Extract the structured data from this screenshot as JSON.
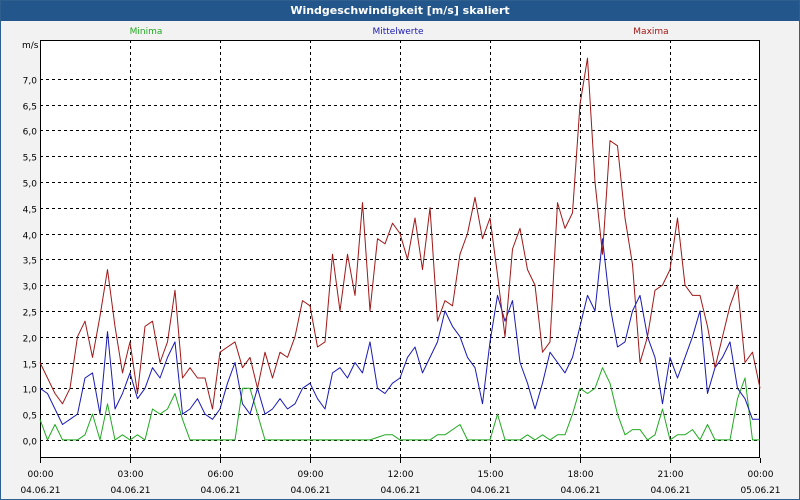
{
  "title": "Windgeschwindigkeit [m/s] skaliert",
  "colors": {
    "minima": "#22aa22",
    "mittelwerte": "#1a1ab5",
    "maxima": "#a01818",
    "grid": "#000000",
    "titlebar": "#23578c"
  },
  "chart_data": {
    "type": "line",
    "title": "Windgeschwindigkeit [m/s] skaliert",
    "ylabel": "m/s",
    "xlabel": "",
    "ylim": [
      -0.35,
      7.75
    ],
    "xlim": [
      0,
      24
    ],
    "yticks": [
      "0,0",
      "0,5",
      "1,0",
      "1,5",
      "2,0",
      "2,5",
      "3,0",
      "3,5",
      "4,0",
      "4,5",
      "5,0",
      "5,5",
      "6,0",
      "6,5",
      "7,0"
    ],
    "ytick_values": [
      0,
      0.5,
      1,
      1.5,
      2,
      2.5,
      3,
      3.5,
      4,
      4.5,
      5,
      5.5,
      6,
      6.5,
      7
    ],
    "xticks": [
      {
        "time": "00:00",
        "date": "04.06.21",
        "hour": 0
      },
      {
        "time": "03:00",
        "date": "04.06.21",
        "hour": 3
      },
      {
        "time": "06:00",
        "date": "04.06.21",
        "hour": 6
      },
      {
        "time": "09:00",
        "date": "04.06.21",
        "hour": 9
      },
      {
        "time": "12:00",
        "date": "04.06.21",
        "hour": 12
      },
      {
        "time": "15:00",
        "date": "04.06.21",
        "hour": 15
      },
      {
        "time": "18:00",
        "date": "04.06.21",
        "hour": 18
      },
      {
        "time": "21:00",
        "date": "04.06.21",
        "hour": 21
      },
      {
        "time": "00:00",
        "date": "05.06.21",
        "hour": 24
      }
    ],
    "grid": true,
    "legend_position": "top",
    "series": [
      {
        "name": "Minima",
        "x": [
          0,
          0.25,
          0.5,
          0.75,
          1,
          1.25,
          1.5,
          1.75,
          2,
          2.25,
          2.5,
          2.75,
          3,
          3.25,
          3.5,
          3.75,
          4,
          4.25,
          4.5,
          4.75,
          5,
          5.25,
          5.5,
          5.75,
          6,
          6.25,
          6.5,
          6.75,
          7,
          7.5,
          8,
          9,
          10,
          11,
          11.5,
          11.75,
          12,
          12.5,
          13,
          13.25,
          13.5,
          14,
          14.25,
          14.5,
          15,
          15.25,
          15.5,
          16,
          16.25,
          16.5,
          16.75,
          17,
          17.25,
          17.5,
          17.75,
          18,
          18.25,
          18.5,
          18.75,
          19,
          19.25,
          19.5,
          19.75,
          20,
          20.25,
          20.5,
          20.75,
          21,
          21.25,
          21.5,
          21.75,
          22,
          22.25,
          22.5,
          22.75,
          23,
          23.25,
          23.5,
          23.75,
          24
        ],
        "values": [
          0.4,
          0,
          0.3,
          0,
          0,
          0,
          0.1,
          0.5,
          0,
          0.7,
          0,
          0.1,
          0,
          0.1,
          0,
          0.6,
          0.5,
          0.6,
          0.9,
          0.4,
          0,
          0,
          0,
          0,
          0,
          0,
          0,
          1.0,
          1.0,
          0,
          0,
          0,
          0,
          0,
          0.1,
          0.1,
          0,
          0,
          0,
          0.1,
          0.1,
          0.3,
          0,
          0,
          0,
          0.5,
          0,
          0,
          0.1,
          0,
          0.1,
          0,
          0.1,
          0.1,
          0.5,
          1.0,
          0.9,
          1.0,
          1.4,
          1.1,
          0.5,
          0.1,
          0.2,
          0.2,
          0,
          0.1,
          0.6,
          0,
          0.1,
          0.1,
          0.2,
          0,
          0.3,
          0,
          0,
          0,
          0.8,
          1.2,
          0,
          0
        ]
      },
      {
        "name": "Mittelwerte",
        "x": [
          0,
          0.25,
          0.5,
          0.75,
          1,
          1.25,
          1.5,
          1.75,
          2,
          2.25,
          2.5,
          2.75,
          3,
          3.25,
          3.5,
          3.75,
          4,
          4.25,
          4.5,
          4.75,
          5,
          5.25,
          5.5,
          5.75,
          6,
          6.25,
          6.5,
          6.75,
          7,
          7.25,
          7.5,
          7.75,
          8,
          8.25,
          8.5,
          8.75,
          9,
          9.25,
          9.5,
          9.75,
          10,
          10.25,
          10.5,
          10.75,
          11,
          11.25,
          11.5,
          11.75,
          12,
          12.25,
          12.5,
          12.75,
          13,
          13.25,
          13.5,
          13.75,
          14,
          14.25,
          14.5,
          14.75,
          15,
          15.25,
          15.5,
          15.75,
          16,
          16.25,
          16.5,
          16.75,
          17,
          17.25,
          17.5,
          17.75,
          18,
          18.25,
          18.5,
          18.75,
          19,
          19.25,
          19.5,
          19.75,
          20,
          20.25,
          20.5,
          20.75,
          21,
          21.25,
          21.5,
          21.75,
          22,
          22.25,
          22.5,
          22.75,
          23,
          23.25,
          23.5,
          23.75,
          24
        ],
        "values": [
          1.0,
          0.9,
          0.6,
          0.3,
          0.4,
          0.5,
          1.2,
          1.3,
          0.5,
          2.1,
          0.6,
          0.9,
          1.3,
          0.8,
          1.0,
          1.4,
          1.2,
          1.6,
          1.9,
          0.5,
          0.6,
          0.8,
          0.5,
          0.4,
          0.6,
          1.1,
          1.5,
          0.7,
          0.5,
          1.0,
          0.5,
          0.6,
          0.8,
          0.6,
          0.7,
          1.0,
          1.1,
          0.8,
          0.6,
          1.3,
          1.4,
          1.2,
          1.5,
          1.3,
          1.9,
          1.0,
          0.9,
          1.1,
          1.2,
          1.6,
          1.8,
          1.3,
          1.6,
          1.9,
          2.5,
          2.2,
          2.0,
          1.6,
          1.4,
          0.7,
          1.9,
          2.8,
          2.3,
          2.7,
          1.5,
          1.1,
          0.6,
          1.1,
          1.7,
          1.5,
          1.3,
          1.6,
          2.2,
          2.8,
          2.5,
          3.9,
          2.6,
          1.8,
          1.9,
          2.5,
          2.8,
          2.0,
          1.6,
          0.7,
          1.6,
          1.2,
          1.6,
          2.0,
          2.5,
          0.9,
          1.4,
          1.6,
          1.9,
          1.0,
          0.8,
          0.4,
          0.4
        ]
      },
      {
        "name": "Maxima",
        "x": [
          0,
          0.25,
          0.5,
          0.75,
          1,
          1.25,
          1.5,
          1.75,
          2,
          2.25,
          2.5,
          2.75,
          3,
          3.25,
          3.5,
          3.75,
          4,
          4.25,
          4.5,
          4.75,
          5,
          5.25,
          5.5,
          5.75,
          6,
          6.25,
          6.5,
          6.75,
          7,
          7.25,
          7.5,
          7.75,
          8,
          8.25,
          8.5,
          8.75,
          9,
          9.25,
          9.5,
          9.75,
          10,
          10.25,
          10.5,
          10.75,
          11,
          11.25,
          11.5,
          11.75,
          12,
          12.25,
          12.5,
          12.75,
          13,
          13.25,
          13.5,
          13.75,
          14,
          14.25,
          14.5,
          14.75,
          15,
          15.25,
          15.5,
          15.75,
          16,
          16.25,
          16.5,
          16.75,
          17,
          17.25,
          17.5,
          17.75,
          18,
          18.25,
          18.5,
          18.75,
          19,
          19.25,
          19.5,
          19.75,
          20,
          20.25,
          20.5,
          20.75,
          21,
          21.25,
          21.5,
          21.75,
          22,
          22.25,
          22.5,
          22.75,
          23,
          23.25,
          23.5,
          23.75,
          24
        ],
        "values": [
          1.5,
          1.2,
          0.9,
          0.7,
          1.0,
          2.0,
          2.3,
          1.6,
          2.4,
          3.3,
          2.2,
          1.3,
          1.9,
          0.9,
          2.2,
          2.3,
          1.5,
          1.9,
          2.9,
          1.2,
          1.4,
          1.2,
          1.2,
          0.6,
          1.7,
          1.8,
          1.9,
          1.4,
          1.6,
          1.0,
          1.7,
          1.2,
          1.7,
          1.6,
          2.0,
          2.7,
          2.6,
          1.8,
          1.9,
          3.6,
          2.5,
          3.6,
          2.8,
          4.6,
          2.5,
          3.9,
          3.8,
          4.2,
          4.0,
          3.5,
          4.3,
          3.3,
          4.5,
          2.3,
          2.7,
          2.6,
          3.6,
          4.0,
          4.7,
          3.9,
          4.3,
          3.2,
          2.0,
          3.7,
          4.1,
          3.3,
          3.0,
          1.7,
          1.9,
          4.6,
          4.1,
          4.4,
          6.5,
          7.4,
          5.0,
          3.6,
          5.8,
          5.7,
          4.3,
          3.4,
          1.5,
          2.0,
          2.9,
          3.0,
          3.3,
          4.3,
          3.0,
          2.8,
          2.8,
          2.2,
          1.4,
          2.0,
          2.6,
          3.0,
          1.5,
          1.7,
          1.0
        ]
      }
    ]
  }
}
